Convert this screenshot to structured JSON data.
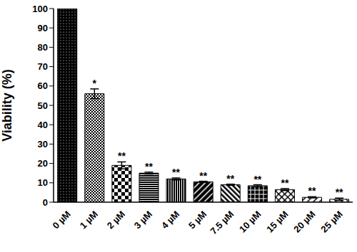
{
  "chart_data": {
    "type": "bar",
    "y_label": "Viability (%)",
    "categories": [
      "0 µM",
      "1 µM",
      "2 µM",
      "3 µM",
      "4 µM",
      "5 µM",
      "7.5 µM",
      "10 µM",
      "15 µM",
      "20 µM",
      "25 µM"
    ],
    "values": [
      100,
      56,
      19,
      15,
      12,
      10.5,
      9,
      8.5,
      6.5,
      2.5,
      1.5
    ],
    "errors": [
      0,
      2.5,
      1.8,
      0.5,
      0.5,
      0.3,
      0.3,
      0.5,
      0.5,
      0.3,
      0.6
    ],
    "annotations": [
      null,
      "*",
      "**",
      "**",
      "**",
      "**",
      "**",
      "**",
      "**",
      "**",
      "**"
    ],
    "color": "#000000",
    "ylim": [
      0,
      100
    ],
    "yticks": [
      0,
      10,
      20,
      30,
      40,
      50,
      60,
      70,
      80,
      90,
      100
    ],
    "grid": false
  }
}
